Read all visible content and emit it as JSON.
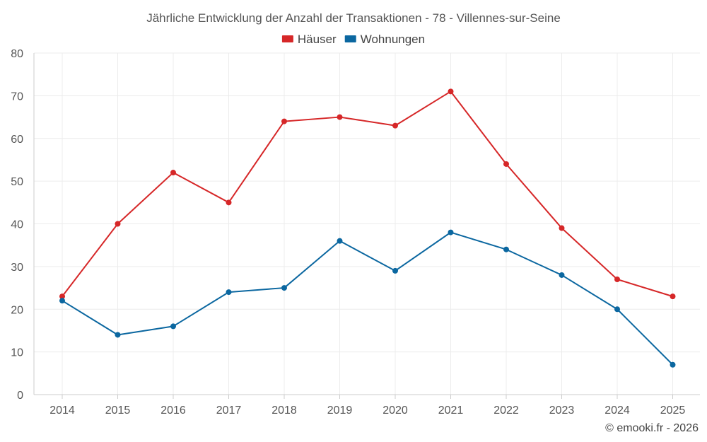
{
  "chart_data": {
    "type": "line",
    "title": "Jährliche Entwicklung der Anzahl der Transaktionen - 78 - Villennes-sur-Seine",
    "categories": [
      "2014",
      "2015",
      "2016",
      "2017",
      "2018",
      "2019",
      "2020",
      "2021",
      "2022",
      "2023",
      "2024",
      "2025"
    ],
    "series": [
      {
        "name": "Häuser",
        "color": "#d62728",
        "values": [
          23,
          40,
          52,
          45,
          64,
          65,
          63,
          71,
          54,
          39,
          27,
          23
        ]
      },
      {
        "name": "Wohnungen",
        "color": "#0b67a0",
        "values": [
          22,
          14,
          16,
          24,
          25,
          36,
          29,
          38,
          34,
          28,
          20,
          7
        ]
      }
    ],
    "ylim": [
      0,
      80
    ],
    "yticks": [
      0,
      10,
      20,
      30,
      40,
      50,
      60,
      70,
      80
    ],
    "grid": true,
    "legend": "top-center",
    "xlabel": "",
    "ylabel": ""
  },
  "credit": "© emooki.fr - 2026"
}
